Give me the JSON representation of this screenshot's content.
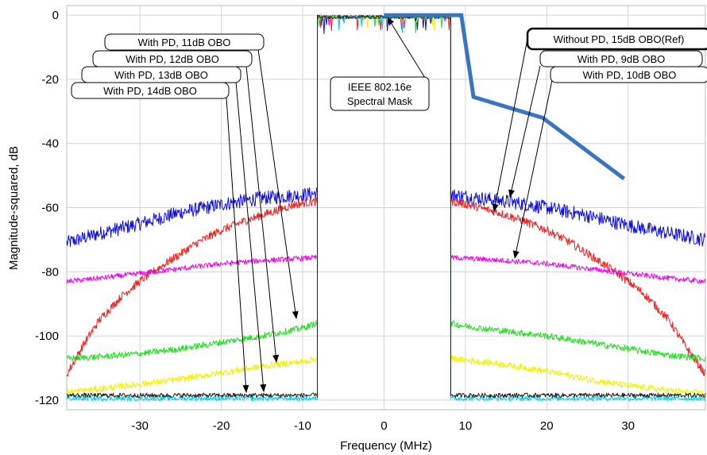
{
  "chart_data": {
    "type": "line",
    "title": "",
    "xlabel": "Frequency (MHz)",
    "ylabel": "Magnitude-squared, dB",
    "xlim": [
      -39,
      39.5
    ],
    "ylim": [
      -123,
      3
    ],
    "x_ticks": [
      -30,
      -20,
      -10,
      0,
      10,
      20,
      30
    ],
    "x_tick_labels": [
      "-30",
      "-20",
      "-10",
      "0",
      "10",
      "20",
      "30"
    ],
    "y_ticks": [
      0,
      -20,
      -40,
      -60,
      -80,
      -100,
      -120
    ],
    "y_tick_labels": [
      "0",
      "-20",
      "-40",
      "-60",
      "-80",
      "-100",
      "-120"
    ],
    "grid": true,
    "series": [
      {
        "key": "blue",
        "color": "#1010e0",
        "noise": 2.2,
        "band_level": 0,
        "left": [
          [
            -39,
            -71
          ],
          [
            -35,
            -68
          ],
          [
            -30,
            -65
          ],
          [
            -25,
            -61.5
          ],
          [
            -20,
            -59
          ],
          [
            -15,
            -57
          ],
          [
            -10,
            -56
          ],
          [
            -8.2,
            -55.5
          ]
        ],
        "right": [
          [
            8.2,
            -56
          ],
          [
            10,
            -56.5
          ],
          [
            15,
            -58
          ],
          [
            20,
            -60
          ],
          [
            25,
            -62.5
          ],
          [
            30,
            -65.5
          ],
          [
            35,
            -68
          ],
          [
            39.5,
            -70
          ]
        ]
      },
      {
        "key": "red",
        "color": "#ee2020",
        "noise": 1.3,
        "band_level": 0,
        "left": [
          [
            -39,
            -112
          ],
          [
            -37,
            -103
          ],
          [
            -35,
            -95
          ],
          [
            -32,
            -87
          ],
          [
            -29,
            -81
          ],
          [
            -26,
            -76
          ],
          [
            -23,
            -71
          ],
          [
            -20,
            -67
          ],
          [
            -17,
            -64
          ],
          [
            -14,
            -61.5
          ],
          [
            -11,
            -59
          ],
          [
            -8.2,
            -58
          ]
        ],
        "right": [
          [
            8.2,
            -58
          ],
          [
            11,
            -59.5
          ],
          [
            14,
            -61.5
          ],
          [
            17,
            -64
          ],
          [
            20,
            -67
          ],
          [
            23,
            -71
          ],
          [
            26,
            -76
          ],
          [
            29,
            -81
          ],
          [
            32,
            -87
          ],
          [
            35,
            -95
          ],
          [
            37,
            -103
          ],
          [
            39.5,
            -112
          ]
        ]
      },
      {
        "key": "magenta",
        "color": "#ee00ee",
        "noise": 0.8,
        "band_level": 0,
        "left": [
          [
            -39,
            -83
          ],
          [
            -35,
            -82
          ],
          [
            -30,
            -80.5
          ],
          [
            -25,
            -79
          ],
          [
            -20,
            -77.5
          ],
          [
            -15,
            -76.5
          ],
          [
            -10,
            -75.8
          ],
          [
            -8.2,
            -75.5
          ]
        ],
        "right": [
          [
            8.2,
            -75.5
          ],
          [
            10,
            -75.8
          ],
          [
            15,
            -76.5
          ],
          [
            20,
            -77.5
          ],
          [
            25,
            -79
          ],
          [
            30,
            -80.5
          ],
          [
            35,
            -82
          ],
          [
            39.5,
            -83
          ]
        ]
      },
      {
        "key": "green",
        "color": "#22dd22",
        "noise": 1.0,
        "band_level": 0,
        "left": [
          [
            -39,
            -107
          ],
          [
            -35,
            -106.5
          ],
          [
            -30,
            -105.5
          ],
          [
            -25,
            -104
          ],
          [
            -20,
            -102
          ],
          [
            -15,
            -100
          ],
          [
            -10,
            -97.5
          ],
          [
            -8.2,
            -96
          ]
        ],
        "right": [
          [
            8.2,
            -96
          ],
          [
            10,
            -97
          ],
          [
            15,
            -98.5
          ],
          [
            20,
            -100
          ],
          [
            25,
            -102
          ],
          [
            30,
            -104
          ],
          [
            35,
            -106
          ],
          [
            39.5,
            -107
          ]
        ]
      },
      {
        "key": "yellow",
        "color": "#f2f200",
        "noise": 1.0,
        "band_level": 0,
        "left": [
          [
            -39,
            -117.5
          ],
          [
            -35,
            -116.5
          ],
          [
            -30,
            -115
          ],
          [
            -25,
            -113.5
          ],
          [
            -20,
            -111.5
          ],
          [
            -15,
            -109.5
          ],
          [
            -10,
            -108
          ],
          [
            -8.2,
            -107
          ]
        ],
        "right": [
          [
            8.2,
            -107
          ],
          [
            10,
            -107.5
          ],
          [
            15,
            -109
          ],
          [
            20,
            -111
          ],
          [
            25,
            -113.5
          ],
          [
            30,
            -115.5
          ],
          [
            35,
            -117
          ],
          [
            39.5,
            -118
          ]
        ]
      },
      {
        "key": "cyan",
        "color": "#00d0e8",
        "noise": 0.7,
        "band_level": 0,
        "left": [
          [
            -39,
            -119.5
          ],
          [
            -8.2,
            -119.5
          ]
        ],
        "right": [
          [
            8.2,
            -119.5
          ],
          [
            39.5,
            -119.5
          ]
        ]
      },
      {
        "key": "black",
        "color": "#202020",
        "noise": 0.7,
        "band_level": 0,
        "left": [
          [
            -39,
            -118.5
          ],
          [
            -8.2,
            -118.5
          ]
        ],
        "right": [
          [
            8.2,
            -118.5
          ],
          [
            39.5,
            -118.5
          ]
        ]
      }
    ],
    "spectral_mask": {
      "color": "#3a75c4",
      "points": [
        [
          0,
          0
        ],
        [
          9.5,
          0
        ],
        [
          11,
          -25.5
        ],
        [
          19.5,
          -32
        ],
        [
          29.5,
          -51
        ]
      ]
    },
    "callouts": [
      {
        "text": "With PD, 11dB OBO",
        "bold": false
      },
      {
        "text": "With PD, 12dB OBO",
        "bold": false
      },
      {
        "text": "With PD, 13dB OBO",
        "bold": false
      },
      {
        "text": "With PD, 14dB OBO",
        "bold": false
      },
      {
        "text": "Without PD, 15dB OBO(Ref)",
        "bold": true
      },
      {
        "text": "With PD, 9dB OBO",
        "bold": false
      },
      {
        "text": "With PD, 10dB OBO",
        "bold": false
      }
    ],
    "mask_label": [
      "IEEE 802.16e",
      "Spectral Mask"
    ]
  }
}
